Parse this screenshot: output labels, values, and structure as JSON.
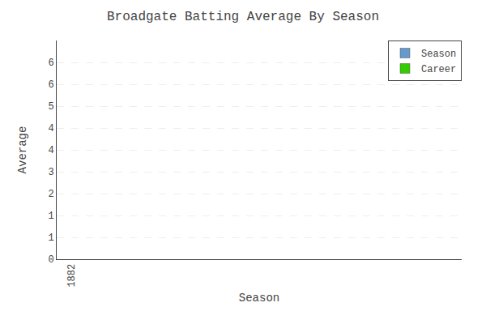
{
  "chart_data": {
    "type": "bar",
    "title": "Broadgate Batting Average By Season",
    "xlabel": "Season",
    "ylabel": "Average",
    "x": [
      1882
    ],
    "series": [
      {
        "name": "Season",
        "color": "#6699CC",
        "values": [
          null
        ]
      },
      {
        "name": "Career",
        "color": "#33CC00",
        "values": [
          null
        ]
      }
    ],
    "xlim": [
      1881.5,
      1895.0
    ],
    "xticks": [
      1882
    ],
    "ylim": [
      0,
      7.0
    ],
    "yticks": [
      0,
      {
        "value": 0.7,
        "label": "1"
      },
      {
        "value": 1.4,
        "label": "1"
      },
      {
        "value": 2.1,
        "label": "2"
      },
      {
        "value": 2.8,
        "label": "3"
      },
      {
        "value": 3.5,
        "label": "4"
      },
      {
        "value": 4.2,
        "label": "4"
      },
      {
        "value": 4.9,
        "label": "5"
      },
      {
        "value": 5.6,
        "label": "6"
      },
      {
        "value": 6.3,
        "label": "6"
      }
    ],
    "grid": true,
    "legend": "upper right"
  }
}
